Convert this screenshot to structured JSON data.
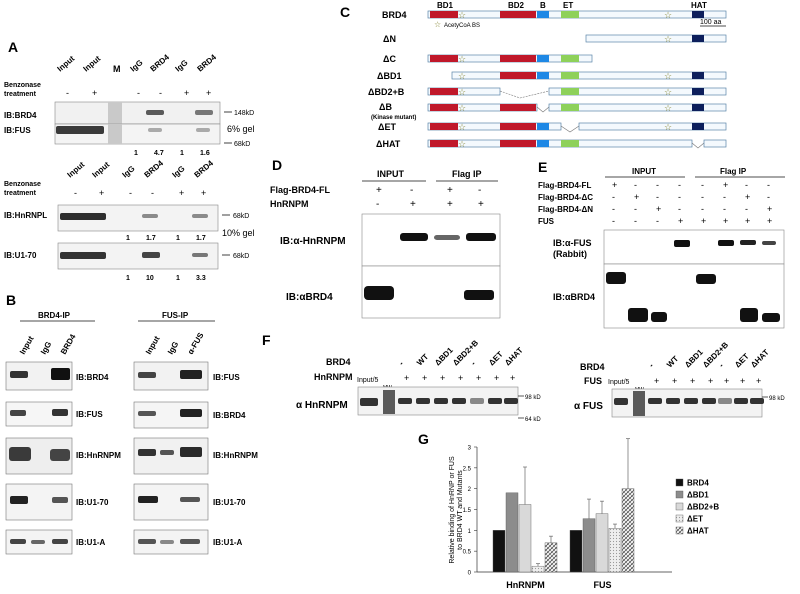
{
  "panelA": {
    "letter": "A",
    "benzonase_label": "Benzonase",
    "treatment_label": "treatment",
    "top_lanes": [
      "Input",
      "Input",
      "M",
      "IgG",
      "BRD4",
      "IgG",
      "BRD4"
    ],
    "top_signs": [
      "-",
      "+",
      "-",
      "-",
      "+",
      "+"
    ],
    "blot1_label": "IB:BRD4",
    "blot2_label": "IB:FUS",
    "mw_148": "148kD",
    "gel_6": "6% gel",
    "mw_68a": "68kD",
    "quant1": [
      "1",
      "4.7",
      "1",
      "1.6"
    ],
    "bottom_lanes": [
      "Input",
      "Input",
      "IgG",
      "BRD4",
      "IgG",
      "BRD4"
    ],
    "bottom_signs": [
      "-",
      "+",
      "-",
      "-",
      "+",
      "+"
    ],
    "blot3_label": "IB:HnRNPL",
    "mw_68b": "68kD",
    "gel_10": "10% gel",
    "quant2": [
      "1",
      "1.7",
      "1",
      "1.7"
    ],
    "blot4_label": "IB:U1-70",
    "mw_68c": "68kD",
    "quant3": [
      "1",
      "10",
      "1",
      "3.3"
    ]
  },
  "panelB": {
    "letter": "B",
    "left_title": "BRD4-IP",
    "left_lanes": [
      "Input",
      "IgG",
      "BRD4"
    ],
    "left_blots": [
      "IB:BRD4",
      "IB:FUS",
      "IB:HnRNPM",
      "IB:U1-70",
      "IB:U1-A"
    ],
    "right_title": "FUS-IP",
    "right_lanes": [
      "Input",
      "IgG",
      "α-FUS"
    ],
    "right_blots": [
      "IB:FUS",
      "IB:BRD4",
      "IB:HnRNPM",
      "IB:U1-70",
      "IB:U1-A"
    ]
  },
  "panelC": {
    "letter": "C",
    "domains": [
      "BD1",
      "BD2",
      "B",
      "ET",
      "HAT"
    ],
    "constructs": [
      "BRD4",
      "ΔN",
      "ΔC",
      "ΔBD1",
      "ΔBD2+B",
      "ΔB",
      "ΔET",
      "ΔHAT"
    ],
    "kinase_note": "(Kinase mutant)",
    "acetycoa_label": "AcetyCoA BS",
    "scale": "100 aa"
  },
  "panelD": {
    "letter": "D",
    "row_labels": [
      "Flag-BRD4-FL",
      "HnRNPM"
    ],
    "input_header": "INPUT",
    "ip_header": "Flag IP",
    "signs_row1": [
      "+",
      "-",
      "+",
      "-"
    ],
    "signs_row2": [
      "-",
      "+",
      "+",
      "+"
    ],
    "blot1_label": "IB:α-HnRNPM",
    "blot2_label": "IB:αBRD4"
  },
  "panelE": {
    "letter": "E",
    "input_header": "INPUT",
    "ip_header": "Flag IP",
    "row_labels": [
      "Flag-BRD4-FL",
      "Flag-BRD4-ΔC",
      "Flag-BRD4-ΔN",
      "FUS"
    ],
    "signs": [
      [
        "+",
        "-",
        "-",
        "-",
        "-",
        "+",
        "-",
        "-"
      ],
      [
        "-",
        "+",
        "-",
        "-",
        "-",
        "-",
        "+",
        "-"
      ],
      [
        "-",
        "-",
        "+",
        "-",
        "-",
        "-",
        "-",
        "+"
      ],
      [
        "-",
        "-",
        "-",
        "+",
        "+",
        "+",
        "+",
        "+"
      ]
    ],
    "blot1_label": "IB:α-FUS",
    "blot1_sub": "(Rabbit)",
    "blot2_label": "IB:αBRD4"
  },
  "panelF": {
    "letter": "F",
    "left": {
      "row1_label": "BRD4",
      "row2_label": "HnRNPM",
      "lanes": [
        "-",
        "WT",
        "ΔBD1",
        "ΔBD2+B",
        "-",
        "ΔET",
        "ΔHAT"
      ],
      "row2_signs": [
        "+",
        "+",
        "+",
        "+",
        "+",
        "+",
        "+"
      ],
      "input_label": "Input/5",
      "mw_label": "MW",
      "blot_label": "α HnRNPM",
      "mw_98": "98 kD",
      "mw_64": "64 kD"
    },
    "right": {
      "row1_label": "BRD4",
      "row2_label": "FUS",
      "lanes": [
        "-",
        "WT",
        "ΔBD1",
        "ΔBD2+B",
        "-",
        "ΔET",
        "ΔHAT"
      ],
      "row2_signs": [
        "+",
        "+",
        "+",
        "+",
        "+",
        "+",
        "+"
      ],
      "input_label": "Input/5",
      "mw_label": "MW",
      "blot_label": "α FUS",
      "mw_98": "98 kD"
    }
  },
  "panelG": {
    "letter": "G"
  },
  "chart_data": {
    "type": "bar",
    "categories": [
      "HnRNPM",
      "FUS"
    ],
    "ylabel": "Relative binding of HnRNP or FUS to BRD4 WT and Mutants",
    "ylim": [
      0,
      3
    ],
    "yticks": [
      "0",
      "0.5",
      "1",
      "1.5",
      "2",
      "2.5",
      "3"
    ],
    "legend_position": "right",
    "series": [
      {
        "name": "BRD4",
        "values": [
          1.0,
          1.0
        ],
        "errors": [
          0,
          0
        ],
        "color": "#111111"
      },
      {
        "name": "ΔBD1",
        "values": [
          1.9,
          1.28
        ],
        "errors": [
          0.0,
          0.47
        ],
        "color": "#8c8c8c"
      },
      {
        "name": "ΔBD2+B",
        "values": [
          1.62,
          1.4
        ],
        "errors": [
          0.9,
          0.3
        ],
        "color": "#d9d9d9"
      },
      {
        "name": "ΔET",
        "values": [
          0.14,
          1.05
        ],
        "errors": [
          0.06,
          0.1
        ],
        "color": "#6e6e6e"
      },
      {
        "name": "ΔHAT",
        "values": [
          0.7,
          2.0
        ],
        "errors": [
          0.16,
          1.2
        ],
        "color": "#b5b5b5"
      }
    ]
  }
}
